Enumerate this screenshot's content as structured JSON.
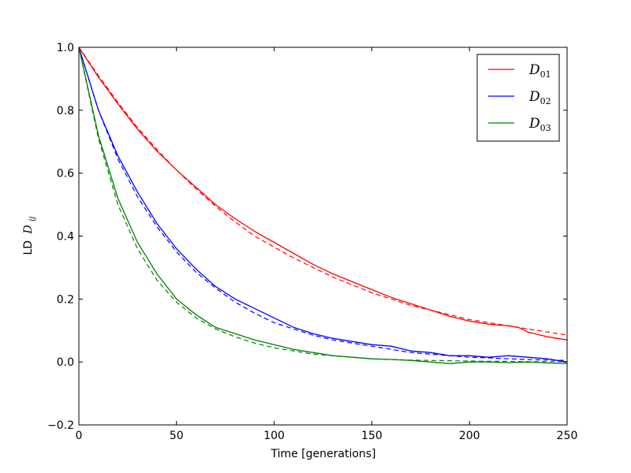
{
  "chart_data": {
    "type": "line",
    "xlabel": "Time [generations]",
    "ylabel_text": "LD",
    "ylabel_symbol": "D",
    "ylabel_subscript": "ij",
    "xlim": [
      0,
      250
    ],
    "ylim": [
      -0.2,
      1.0
    ],
    "xticks": [
      0,
      50,
      100,
      150,
      200,
      250
    ],
    "yticks": [
      -0.2,
      0.0,
      0.2,
      0.4,
      0.6,
      0.8,
      1.0
    ],
    "xtick_labels": [
      "0",
      "50",
      "100",
      "150",
      "200",
      "250"
    ],
    "ytick_labels": [
      "−0.2",
      "0.0",
      "0.2",
      "0.4",
      "0.6",
      "0.8",
      "1.0"
    ],
    "grid": false,
    "legend_position": "top-right",
    "series": [
      {
        "name": "D",
        "subscript": "01",
        "color": "#ff0000",
        "x": [
          0,
          10,
          20,
          30,
          40,
          50,
          60,
          70,
          80,
          90,
          100,
          110,
          120,
          130,
          140,
          150,
          160,
          170,
          180,
          190,
          200,
          210,
          220,
          225,
          230,
          240,
          250
        ],
        "y": [
          1.0,
          0.905,
          0.82,
          0.74,
          0.67,
          0.61,
          0.555,
          0.5,
          0.455,
          0.415,
          0.38,
          0.345,
          0.31,
          0.28,
          0.255,
          0.23,
          0.205,
          0.185,
          0.165,
          0.145,
          0.13,
          0.12,
          0.115,
          0.11,
          0.095,
          0.08,
          0.07
        ],
        "fit": [
          1.0,
          0.91,
          0.825,
          0.745,
          0.675,
          0.61,
          0.55,
          0.495,
          0.445,
          0.4,
          0.365,
          0.33,
          0.3,
          0.27,
          0.245,
          0.22,
          0.2,
          0.18,
          0.165,
          0.15,
          0.135,
          0.125,
          0.115,
          0.11,
          0.105,
          0.095,
          0.085
        ]
      },
      {
        "name": "D",
        "subscript": "02",
        "color": "#0000ff",
        "x": [
          0,
          10,
          20,
          30,
          40,
          50,
          60,
          70,
          80,
          90,
          100,
          110,
          120,
          130,
          140,
          150,
          160,
          170,
          180,
          190,
          200,
          210,
          220,
          230,
          240,
          250
        ],
        "y": [
          1.0,
          0.8,
          0.655,
          0.54,
          0.44,
          0.36,
          0.295,
          0.24,
          0.2,
          0.17,
          0.14,
          0.11,
          0.09,
          0.075,
          0.065,
          0.055,
          0.05,
          0.035,
          0.03,
          0.02,
          0.02,
          0.015,
          0.02,
          0.015,
          0.01,
          0.0
        ],
        "fit": [
          1.0,
          0.8,
          0.645,
          0.525,
          0.43,
          0.35,
          0.285,
          0.235,
          0.19,
          0.155,
          0.125,
          0.105,
          0.085,
          0.07,
          0.06,
          0.05,
          0.04,
          0.03,
          0.025,
          0.02,
          0.015,
          0.013,
          0.01,
          0.008,
          0.006,
          0.005
        ]
      },
      {
        "name": "D",
        "subscript": "03",
        "color": "#008000",
        "x": [
          0,
          10,
          20,
          30,
          40,
          50,
          60,
          70,
          80,
          90,
          100,
          110,
          120,
          130,
          140,
          150,
          160,
          170,
          180,
          190,
          200,
          210,
          220,
          230,
          240,
          250
        ],
        "y": [
          1.0,
          0.72,
          0.52,
          0.38,
          0.28,
          0.2,
          0.15,
          0.11,
          0.09,
          0.07,
          0.055,
          0.04,
          0.03,
          0.02,
          0.015,
          0.01,
          0.008,
          0.005,
          0.0,
          -0.005,
          0.0,
          0.0,
          -0.002,
          0.0,
          -0.003,
          -0.005
        ],
        "fit": [
          1.0,
          0.71,
          0.5,
          0.36,
          0.26,
          0.19,
          0.14,
          0.105,
          0.08,
          0.06,
          0.045,
          0.035,
          0.025,
          0.02,
          0.015,
          0.01,
          0.008,
          0.006,
          0.005,
          0.004,
          0.003,
          0.002,
          0.002,
          0.001,
          0.001,
          0.001
        ]
      }
    ]
  }
}
